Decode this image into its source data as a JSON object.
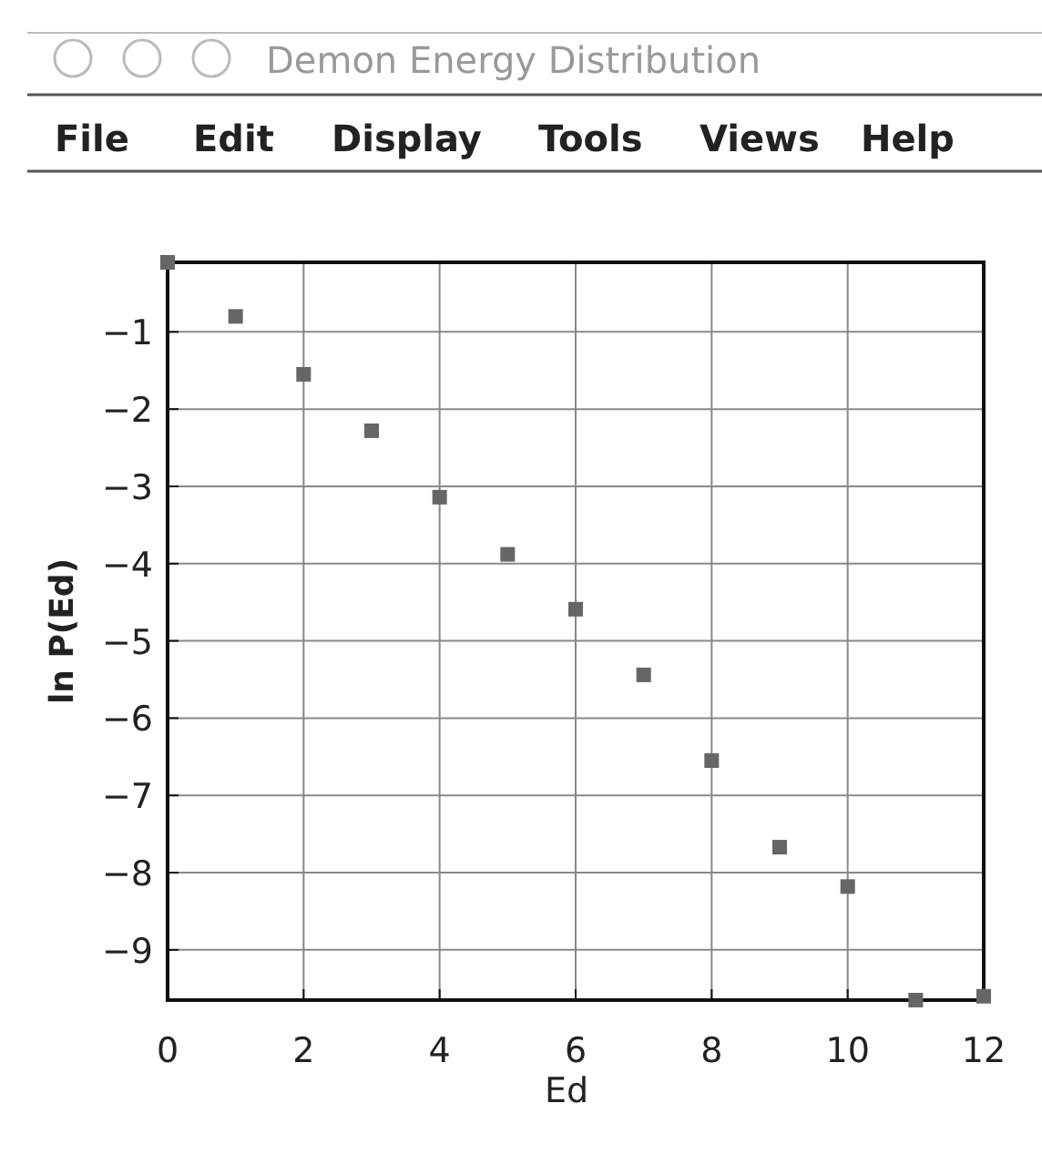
{
  "chart_data": {
    "type": "scatter",
    "title": "Demon Energy Distribution",
    "annotations": [
      "File",
      "Edit",
      "Display",
      "Tools",
      "Views",
      "Help"
    ],
    "xlabel": "Ed",
    "ylabel": "ln P(Ed)",
    "x": [
      0,
      1,
      2,
      3,
      4,
      5,
      6,
      7,
      8,
      9,
      10,
      11,
      12
    ],
    "series": [
      {
        "color": "#666666",
        "values": [
          -0.1,
          -0.8,
          -1.55,
          -2.28,
          -3.14,
          -3.88,
          -4.59,
          -5.44,
          -6.55,
          -7.67,
          -8.18,
          -9.65,
          -9.6
        ]
      }
    ],
    "xlim": [
      0,
      12
    ],
    "xticks": [
      0,
      2,
      4,
      6,
      8,
      10,
      12
    ],
    "ylim": [
      -9.65,
      -0.1
    ],
    "yticks": [
      -1,
      -2,
      -3,
      -4,
      -5,
      -6,
      -7,
      -8,
      -9
    ],
    "grid": true,
    "marker": "square"
  }
}
